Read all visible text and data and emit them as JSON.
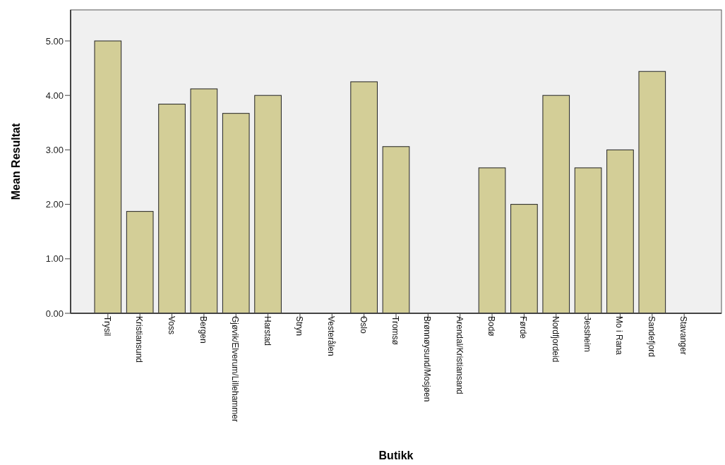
{
  "chart_data": {
    "type": "bar",
    "xlabel": "Butikk",
    "ylabel": "Mean Resultat",
    "categories": [
      "Trysil",
      "Kristiansund",
      "Voss",
      "Bergen",
      "Gjøvik/Elverum/Lillehammer",
      "Harstad",
      "Stryn",
      "Vesterålen",
      "Oslo",
      "Tromsø",
      "Brønnøysund/Mosjøen",
      "Arendal/Kristiansand",
      "Bodø",
      "Førde",
      "Nordfjordeid",
      "Jessheim",
      "Mo i Rana",
      "Sandefjord",
      "Stavanger"
    ],
    "values": [
      5.0,
      1.87,
      3.84,
      4.12,
      3.67,
      4.0,
      null,
      null,
      4.25,
      3.06,
      null,
      null,
      2.67,
      2.0,
      4.0,
      2.67,
      3.0,
      4.44,
      null
    ],
    "color": "#d3ce97",
    "ylim": [
      0,
      5.57
    ],
    "yticks": [
      {
        "value": 0,
        "label": "0.00"
      },
      {
        "value": 1,
        "label": "1.00"
      },
      {
        "value": 2,
        "label": "2.00"
      },
      {
        "value": 3,
        "label": "3.00"
      },
      {
        "value": 4,
        "label": "4.00"
      },
      {
        "value": 5,
        "label": "5.00"
      }
    ],
    "grid": false
  }
}
